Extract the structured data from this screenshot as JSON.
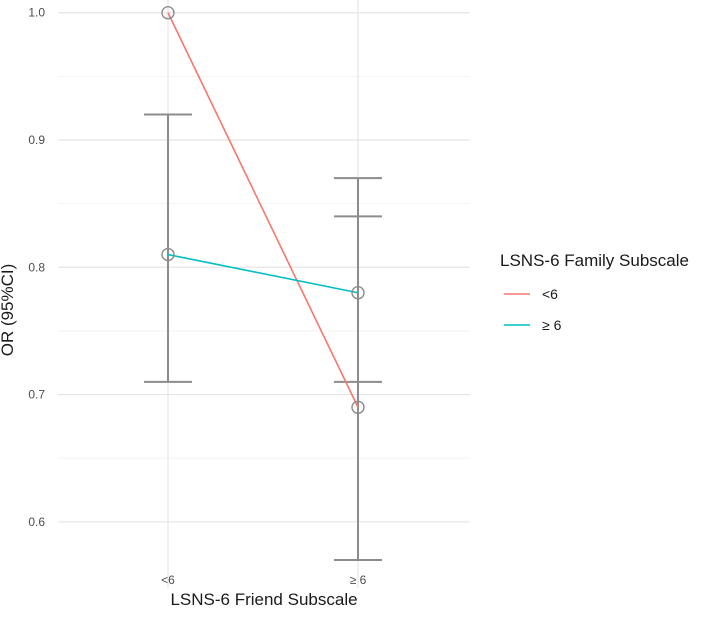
{
  "chart_data": {
    "type": "line",
    "xlabel": "LSNS-6 Friend Subscale",
    "ylabel": "OR (95%CI)",
    "categories": [
      "<6",
      "≥ 6"
    ],
    "ylim": [
      0.548,
      1.01
    ],
    "yticks": [
      0.6,
      0.7,
      0.8,
      0.9,
      1.0
    ],
    "ytick_labels": [
      "0.6",
      "0.7",
      "0.8",
      "0.9",
      "1.0"
    ],
    "grid": true,
    "legend": {
      "title": "LSNS-6 Family Subscale",
      "position": "right"
    },
    "series": [
      {
        "name": "<6",
        "color": "#f8766d",
        "values": [
          1.0,
          0.69
        ],
        "ci_lower": [
          null,
          0.57
        ],
        "ci_upper": [
          null,
          0.84
        ]
      },
      {
        "name": "≥ 6",
        "color": "#00bfc4",
        "values": [
          0.81,
          0.78
        ],
        "ci_lower": [
          0.71,
          0.71
        ],
        "ci_upper": [
          0.92,
          0.87
        ]
      }
    ]
  }
}
